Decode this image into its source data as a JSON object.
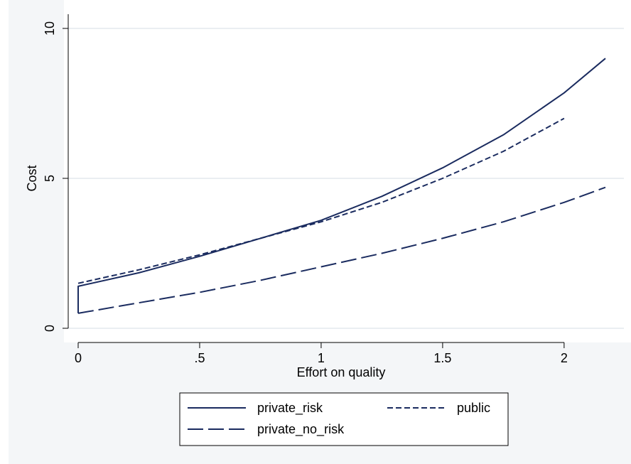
{
  "chart_data": {
    "type": "line",
    "title": "",
    "xlabel": "Effort on quality",
    "ylabel": "Cost",
    "xlim": [
      0,
      2.17
    ],
    "ylim": [
      0,
      10
    ],
    "x_ticks": [
      {
        "value": 0,
        "label": "0"
      },
      {
        "value": 0.5,
        "label": ".5"
      },
      {
        "value": 1,
        "label": "1"
      },
      {
        "value": 1.5,
        "label": "1.5"
      },
      {
        "value": 2,
        "label": "2"
      }
    ],
    "y_ticks": [
      {
        "value": 0,
        "label": "0"
      },
      {
        "value": 5,
        "label": "5"
      },
      {
        "value": 10,
        "label": "10"
      }
    ],
    "grid": true,
    "legend_position": "bottom",
    "line_color": "#1a2b5f",
    "series": [
      {
        "name": "private_risk",
        "dash": "solid",
        "x": [
          0,
          0,
          0.25,
          0.5,
          0.75,
          1,
          1.25,
          1.5,
          1.75,
          2,
          2.17
        ],
        "y": [
          0.5,
          1.4,
          1.85,
          2.4,
          3.0,
          3.6,
          4.4,
          5.35,
          6.45,
          7.85,
          9.0
        ]
      },
      {
        "name": "public",
        "dash": "short",
        "x": [
          0,
          0.25,
          0.5,
          0.75,
          1,
          1.25,
          1.5,
          1.75,
          2
        ],
        "y": [
          1.5,
          1.95,
          2.45,
          3.0,
          3.55,
          4.2,
          5.0,
          5.9,
          7.0
        ]
      },
      {
        "name": "private_no_risk",
        "dash": "long",
        "x": [
          0,
          0.25,
          0.5,
          0.75,
          1,
          1.25,
          1.5,
          1.75,
          2,
          2.17
        ],
        "y": [
          0.5,
          0.85,
          1.2,
          1.6,
          2.05,
          2.5,
          3.0,
          3.55,
          4.2,
          4.7
        ]
      }
    ],
    "legend": [
      {
        "name": "private_risk",
        "dash": "solid"
      },
      {
        "name": "public",
        "dash": "short"
      },
      {
        "name": "private_no_risk",
        "dash": "long"
      }
    ]
  }
}
